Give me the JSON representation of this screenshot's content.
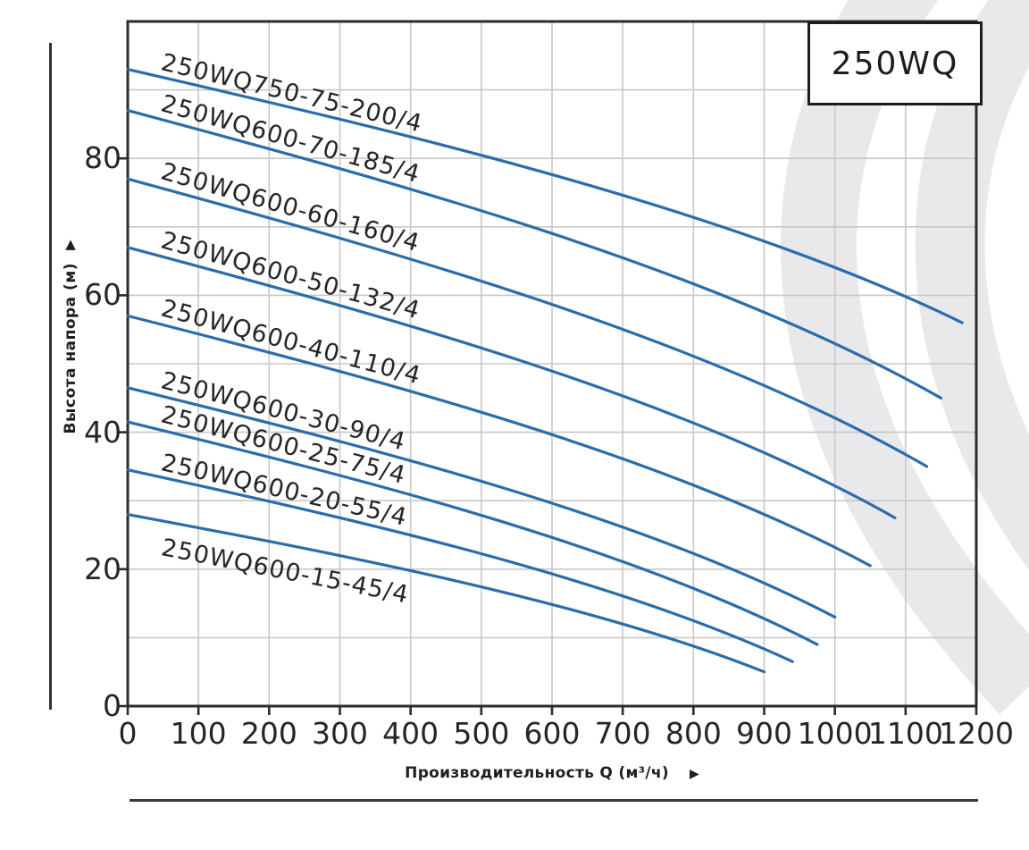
{
  "page": {
    "background": "#ffffff",
    "watermark_color": "#e9e9ec"
  },
  "header_box": {
    "label": "250WQ"
  },
  "y_axis": {
    "title": "Высота напора (м)",
    "arrow_icon": "▲",
    "tick_labels": [
      "0",
      "20",
      "40",
      "60",
      "80"
    ]
  },
  "x_axis": {
    "title": "Производительность Q (м³/ч)",
    "arrow_icon": "▶",
    "tick_labels": [
      "0",
      "100",
      "200",
      "300",
      "400",
      "500",
      "600",
      "700",
      "800",
      "900",
      "1000",
      "1100",
      "1200"
    ]
  },
  "chart_data": {
    "type": "line",
    "title": "250WQ",
    "xlabel": "Производительность Q (м³/ч)",
    "ylabel": "Высота напора (м)",
    "xlim": [
      0,
      1200
    ],
    "ylim": [
      0,
      100
    ],
    "x_tick_step": 100,
    "y_label_step": 20,
    "grid": true,
    "grid_x_step": 100,
    "grid_y_step": 10,
    "legend_position": "none",
    "line_color": "#2a6dab",
    "axis_color": "#2b2b2b",
    "grid_color": "#c8c8cc",
    "units": {
      "q": "м³/ч",
      "h": "м"
    },
    "series": [
      {
        "name": "250WQ750-75-200/4",
        "points": [
          [
            0,
            93
          ],
          [
            1180,
            56
          ]
        ],
        "label_above": true
      },
      {
        "name": "250WQ600-70-185/4",
        "points": [
          [
            0,
            87
          ],
          [
            1150,
            45
          ]
        ],
        "label_above": true
      },
      {
        "name": "250WQ600-60-160/4",
        "points": [
          [
            0,
            77
          ],
          [
            1130,
            35
          ]
        ],
        "label_above": true
      },
      {
        "name": "250WQ600-50-132/4",
        "points": [
          [
            0,
            67
          ],
          [
            1085,
            27.5
          ]
        ],
        "label_above": true
      },
      {
        "name": "250WQ600-40-110/4",
        "points": [
          [
            0,
            57
          ],
          [
            1050,
            20.5
          ]
        ],
        "label_above": true
      },
      {
        "name": "250WQ600-30-90/4",
        "points": [
          [
            0,
            46.5
          ],
          [
            1000,
            13
          ]
        ],
        "label_above": true
      },
      {
        "name": "250WQ600-25-75/4",
        "points": [
          [
            0,
            41.5
          ],
          [
            975,
            9
          ]
        ],
        "label_above": true
      },
      {
        "name": "250WQ600-20-55/4",
        "points": [
          [
            0,
            34.5
          ],
          [
            940,
            6.5
          ]
        ],
        "label_above": true
      },
      {
        "name": "250WQ600-15-45/4",
        "points": [
          [
            0,
            28
          ],
          [
            900,
            5
          ]
        ],
        "label_above": false
      }
    ]
  }
}
